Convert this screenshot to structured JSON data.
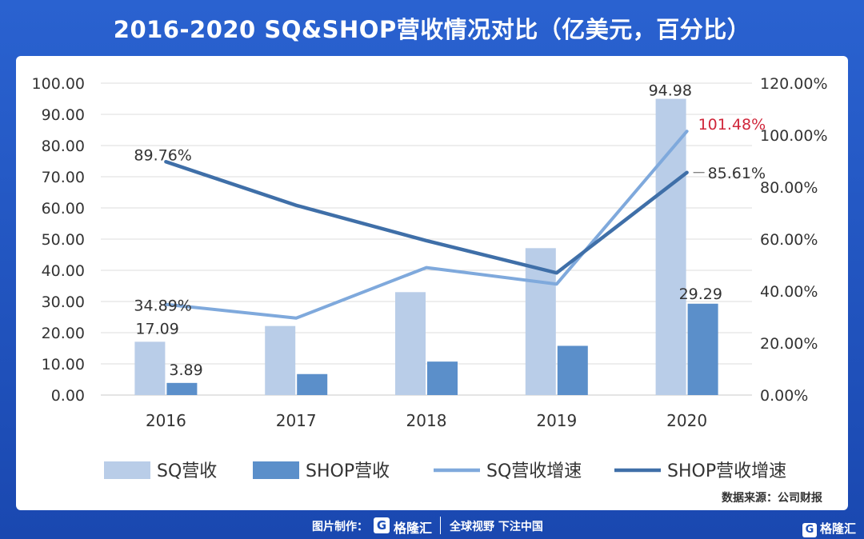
{
  "title": "2016-2020 SQ&SHOP营收情况对比（亿美元，百分比）",
  "source": "数据来源：公司财报",
  "footer": {
    "made_by": "图片制作：",
    "brand": "格隆汇",
    "slogan": "全球视野 下注中国"
  },
  "corner_logo": "格隆汇",
  "chart_data": {
    "type": "bar",
    "categories": [
      "2016",
      "2017",
      "2018",
      "2019",
      "2020"
    ],
    "series": [
      {
        "name": "SQ营收",
        "type": "bar",
        "axis": "left",
        "values": [
          17.09,
          22.14,
          33.0,
          47.1,
          94.98
        ],
        "color": "#b9cde8"
      },
      {
        "name": "SHOP营收",
        "type": "bar",
        "axis": "left",
        "values": [
          3.89,
          6.73,
          10.73,
          15.78,
          29.29
        ],
        "color": "#5b8fca"
      },
      {
        "name": "SQ营收增速",
        "type": "line",
        "axis": "right",
        "values": [
          34.89,
          29.6,
          49.05,
          42.7,
          101.48
        ],
        "color": "#7fa9dc"
      },
      {
        "name": "SHOP营收增速",
        "type": "line",
        "axis": "right",
        "values": [
          89.76,
          73.0,
          59.4,
          47.0,
          85.61
        ],
        "color": "#3f6fa8"
      }
    ],
    "data_labels": {
      "bar_sq_2016": "17.09",
      "bar_shop_2016": "3.89",
      "bar_sq_2020": "94.98",
      "bar_shop_2020": "29.29",
      "line_sq_2016": "34.89%",
      "line_shop_2016": "89.76%",
      "line_sq_2020": "101.48%",
      "line_shop_2020": "85.61%"
    },
    "y_left": {
      "ylim": [
        0,
        100
      ],
      "ticks": [
        "0.00",
        "10.00",
        "20.00",
        "30.00",
        "40.00",
        "50.00",
        "60.00",
        "70.00",
        "80.00",
        "90.00",
        "100.00"
      ]
    },
    "y_right": {
      "ylim": [
        0,
        120
      ],
      "ticks": [
        "0.00%",
        "20.00%",
        "40.00%",
        "60.00%",
        "80.00%",
        "100.00%",
        "120.00%"
      ]
    },
    "grid": true,
    "legend_position": "bottom",
    "highlight_color": "#d0263a"
  }
}
